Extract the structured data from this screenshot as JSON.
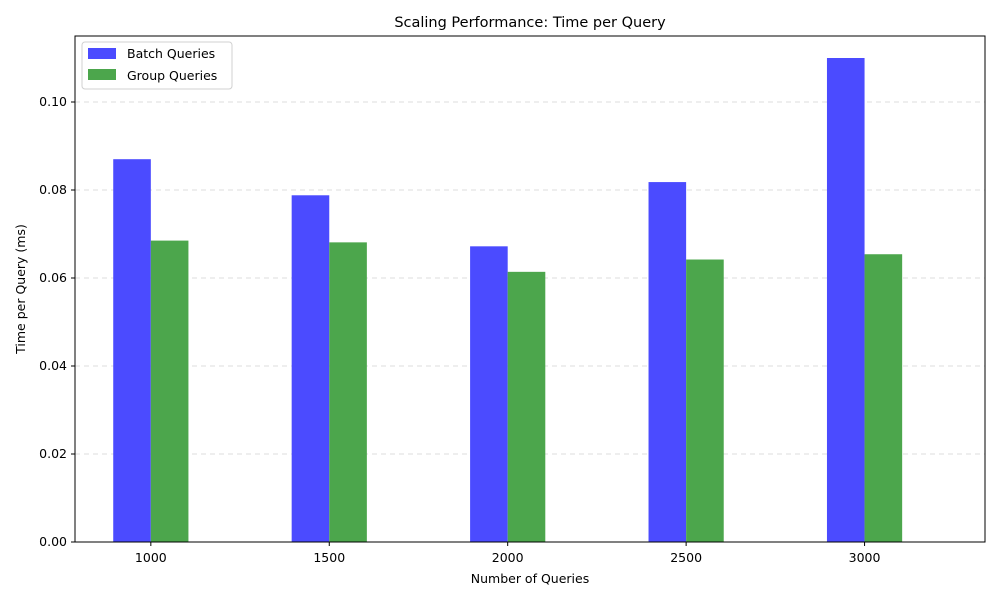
{
  "chart_data": {
    "type": "bar",
    "title": "Scaling Performance: Time per Query",
    "xlabel": "Number of Queries",
    "ylabel": "Time per Query (ms)",
    "categories": [
      "1000",
      "1500",
      "2000",
      "2500",
      "3000"
    ],
    "series": [
      {
        "name": "Batch Queries",
        "color": "#4b4bff",
        "values": [
          0.087,
          0.0788,
          0.0672,
          0.0818,
          0.11
        ]
      },
      {
        "name": "Group Queries",
        "color": "#4ca64c",
        "values": [
          0.0685,
          0.0681,
          0.0614,
          0.0642,
          0.0654
        ]
      }
    ],
    "ylim": [
      0,
      0.115
    ],
    "yticks": [
      0.0,
      0.02,
      0.04,
      0.06,
      0.08,
      0.1
    ],
    "ytick_labels": [
      "0.00",
      "0.02",
      "0.04",
      "0.06",
      "0.08",
      "0.10"
    ],
    "grid": "y-dashed",
    "legend_position": "top-left"
  }
}
